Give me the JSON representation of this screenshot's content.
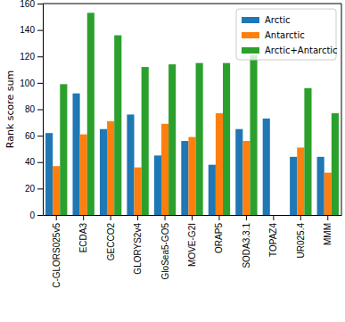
{
  "chart_data": {
    "type": "bar",
    "y_label": "Rank score sum",
    "categories": [
      "C-GLORS025v5",
      "ECDA3",
      "GECCO2",
      "GLORYS2v4",
      "GloSea5-GO5",
      "MOVE-G2I",
      "ORAP5",
      "SODA3.3.1",
      "TOPAZ4",
      "UR025.4",
      "MMM"
    ],
    "series": [
      {
        "name": "Arctic",
        "color": "#1f77b4",
        "values": [
          62,
          92,
          65,
          76,
          45,
          56,
          38,
          65,
          73,
          44,
          44
        ]
      },
      {
        "name": "Antarctic",
        "color": "#ff7f0e",
        "values": [
          37,
          61,
          71,
          36,
          69,
          59,
          77,
          56,
          null,
          51,
          32
        ]
      },
      {
        "name": "Arctic+Antarctic",
        "color": "#2ca02c",
        "values": [
          99,
          153,
          136,
          112,
          114,
          115,
          115,
          121,
          null,
          96,
          77
        ]
      }
    ],
    "ylim": [
      0,
      160
    ],
    "yticks": [
      0,
      20,
      40,
      60,
      80,
      100,
      120,
      140,
      160
    ],
    "legend": "upper right",
    "grid": false
  }
}
